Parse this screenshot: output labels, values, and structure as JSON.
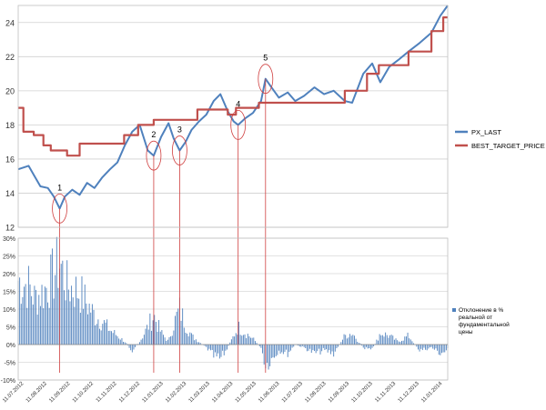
{
  "chart_data": [
    {
      "type": "line",
      "title": "",
      "xlabel": "",
      "ylabel": "",
      "ylim": [
        12,
        25
      ],
      "y_ticks": [
        "12",
        "14",
        "16",
        "18",
        "20",
        "22",
        "24"
      ],
      "grid": true,
      "legend_position": "right",
      "x_range": [
        "2012-07-11",
        "2014-02-11"
      ],
      "series": [
        {
          "name": "PX_LAST",
          "color": "#4F81BD",
          "points": [
            [
              "2012-07-11",
              15.4
            ],
            [
              "2012-07-25",
              15.6
            ],
            [
              "2012-08-02",
              15.0
            ],
            [
              "2012-08-10",
              14.4
            ],
            [
              "2012-08-20",
              14.3
            ],
            [
              "2012-08-28",
              13.8
            ],
            [
              "2012-09-05",
              13.1
            ],
            [
              "2012-09-12",
              13.8
            ],
            [
              "2012-09-22",
              14.2
            ],
            [
              "2012-10-02",
              13.9
            ],
            [
              "2012-10-12",
              14.6
            ],
            [
              "2012-10-22",
              14.3
            ],
            [
              "2012-11-01",
              14.9
            ],
            [
              "2012-11-12",
              15.4
            ],
            [
              "2012-11-22",
              15.8
            ],
            [
              "2012-12-02",
              16.8
            ],
            [
              "2012-12-12",
              17.6
            ],
            [
              "2012-12-22",
              18.0
            ],
            [
              "2013-01-02",
              16.5
            ],
            [
              "2013-01-10",
              16.2
            ],
            [
              "2013-01-20",
              17.3
            ],
            [
              "2013-01-30",
              18.1
            ],
            [
              "2013-02-06",
              17.2
            ],
            [
              "2013-02-14",
              16.5
            ],
            [
              "2013-02-22",
              17.0
            ],
            [
              "2013-03-02",
              17.7
            ],
            [
              "2013-03-12",
              18.2
            ],
            [
              "2013-03-22",
              18.6
            ],
            [
              "2013-04-01",
              19.4
            ],
            [
              "2013-04-10",
              19.8
            ],
            [
              "2013-04-20",
              18.8
            ],
            [
              "2013-04-28",
              18.2
            ],
            [
              "2013-05-04",
              18.0
            ],
            [
              "2013-05-14",
              18.4
            ],
            [
              "2013-05-24",
              18.7
            ],
            [
              "2013-06-04",
              19.4
            ],
            [
              "2013-06-10",
              20.7
            ],
            [
              "2013-06-18",
              20.2
            ],
            [
              "2013-06-28",
              19.6
            ],
            [
              "2013-07-10",
              19.9
            ],
            [
              "2013-07-20",
              19.4
            ],
            [
              "2013-08-01",
              19.7
            ],
            [
              "2013-08-15",
              20.2
            ],
            [
              "2013-08-28",
              19.8
            ],
            [
              "2013-09-10",
              20.0
            ],
            [
              "2013-09-25",
              19.4
            ],
            [
              "2013-10-05",
              19.3
            ],
            [
              "2013-10-20",
              21.0
            ],
            [
              "2013-11-01",
              21.6
            ],
            [
              "2013-11-12",
              20.5
            ],
            [
              "2013-11-24",
              21.4
            ],
            [
              "2013-12-06",
              21.8
            ],
            [
              "2013-12-20",
              22.3
            ],
            [
              "2014-01-04",
              22.8
            ],
            [
              "2014-01-20",
              23.4
            ],
            [
              "2014-02-01",
              24.4
            ],
            [
              "2014-02-11",
              25.0
            ]
          ]
        },
        {
          "name": "BEST_TARGET_PRICE",
          "color": "#C0504D",
          "points": [
            [
              "2012-07-11",
              19.0
            ],
            [
              "2012-07-18",
              19.0
            ],
            [
              "2012-07-18",
              17.6
            ],
            [
              "2012-08-01",
              17.6
            ],
            [
              "2012-08-01",
              17.4
            ],
            [
              "2012-08-14",
              17.4
            ],
            [
              "2012-08-14",
              16.8
            ],
            [
              "2012-08-24",
              16.8
            ],
            [
              "2012-08-24",
              16.5
            ],
            [
              "2012-09-15",
              16.5
            ],
            [
              "2012-09-15",
              16.2
            ],
            [
              "2012-10-02",
              16.2
            ],
            [
              "2012-10-02",
              16.9
            ],
            [
              "2012-12-01",
              16.9
            ],
            [
              "2012-12-01",
              17.4
            ],
            [
              "2012-12-20",
              17.4
            ],
            [
              "2012-12-20",
              18.0
            ],
            [
              "2013-01-10",
              18.0
            ],
            [
              "2013-01-10",
              18.3
            ],
            [
              "2013-03-10",
              18.3
            ],
            [
              "2013-03-10",
              18.9
            ],
            [
              "2013-04-20",
              18.9
            ],
            [
              "2013-04-20",
              18.6
            ],
            [
              "2013-05-01",
              18.6
            ],
            [
              "2013-05-01",
              19.0
            ],
            [
              "2013-06-01",
              19.0
            ],
            [
              "2013-06-01",
              19.3
            ],
            [
              "2013-09-25",
              19.3
            ],
            [
              "2013-09-25",
              20.0
            ],
            [
              "2013-10-25",
              20.0
            ],
            [
              "2013-10-25",
              21.0
            ],
            [
              "2013-11-10",
              21.0
            ],
            [
              "2013-11-10",
              21.5
            ],
            [
              "2013-12-20",
              21.5
            ],
            [
              "2013-12-20",
              22.3
            ],
            [
              "2014-01-20",
              22.3
            ],
            [
              "2014-01-20",
              23.5
            ],
            [
              "2014-02-05",
              23.5
            ],
            [
              "2014-02-05",
              24.3
            ],
            [
              "2014-02-11",
              24.3
            ]
          ]
        }
      ],
      "annotations": [
        {
          "label": "1",
          "date": "2012-09-05",
          "y": 13.1
        },
        {
          "label": "2",
          "date": "2013-01-10",
          "y": 16.2
        },
        {
          "label": "3",
          "date": "2013-02-14",
          "y": 16.5
        },
        {
          "label": "4",
          "date": "2013-05-04",
          "y": 18.0
        },
        {
          "label": "5",
          "date": "2013-06-10",
          "y": 20.7
        }
      ]
    },
    {
      "type": "bar",
      "title": "",
      "ylim": [
        -10,
        30
      ],
      "y_ticks": [
        "-10%",
        "-5%",
        "0%",
        "5%",
        "10%",
        "15%",
        "20%",
        "25%",
        "30%"
      ],
      "grid": true,
      "legend_position": "right",
      "legend_label": "Отклонение в % реальной от фундаментальной цены",
      "x_ticks": [
        "11.07.2012",
        "11.08.2012",
        "11.09.2012",
        "11.10.2012",
        "11.11.2012",
        "11.12.2012",
        "11.01.2013",
        "11.02.2013",
        "11.03.2013",
        "11.04.2013",
        "11.05.2013",
        "11.06.2013",
        "11.07.2013",
        "11.08.2013",
        "11.09.2013",
        "11.10.2013",
        "11.11.2013",
        "11.12.2013",
        "11.01.2014"
      ],
      "series": [
        {
          "name": "Отклонение в % реальной от фундаментальной цены",
          "color": "#4F81BD",
          "points": [
            [
              "2012-07-11",
              22
            ],
            [
              "2012-07-25",
              20
            ],
            [
              "2012-08-02",
              16
            ],
            [
              "2012-08-14",
              18
            ],
            [
              "2012-08-24",
              22
            ],
            [
              "2012-09-05",
              28
            ],
            [
              "2012-09-15",
              20
            ],
            [
              "2012-10-02",
              18
            ],
            [
              "2012-10-12",
              14
            ],
            [
              "2012-10-22",
              10
            ],
            [
              "2012-11-01",
              8
            ],
            [
              "2012-11-12",
              5
            ],
            [
              "2012-11-22",
              3
            ],
            [
              "2012-12-02",
              1
            ],
            [
              "2012-12-12",
              -2
            ],
            [
              "2012-12-22",
              1
            ],
            [
              "2013-01-02",
              6
            ],
            [
              "2013-01-10",
              10
            ],
            [
              "2013-01-20",
              4
            ],
            [
              "2013-01-30",
              1
            ],
            [
              "2013-02-06",
              7
            ],
            [
              "2013-02-14",
              12
            ],
            [
              "2013-02-22",
              7
            ],
            [
              "2013-03-02",
              3
            ],
            [
              "2013-03-12",
              1
            ],
            [
              "2013-03-22",
              -1
            ],
            [
              "2013-04-01",
              -4
            ],
            [
              "2013-04-10",
              -5
            ],
            [
              "2013-04-20",
              -1
            ],
            [
              "2013-05-04",
              6
            ],
            [
              "2013-05-14",
              4
            ],
            [
              "2013-05-24",
              2
            ],
            [
              "2013-06-04",
              -1
            ],
            [
              "2013-06-10",
              -7
            ],
            [
              "2013-06-18",
              -5
            ],
            [
              "2013-06-28",
              -2
            ],
            [
              "2013-07-10",
              -3
            ],
            [
              "2013-07-20",
              0
            ],
            [
              "2013-08-01",
              -1
            ],
            [
              "2013-08-15",
              -3
            ],
            [
              "2013-08-28",
              -2
            ],
            [
              "2013-09-10",
              -3
            ],
            [
              "2013-09-25",
              3
            ],
            [
              "2013-10-05",
              4
            ],
            [
              "2013-10-20",
              -1
            ],
            [
              "2013-11-01",
              -2
            ],
            [
              "2013-11-12",
              4
            ],
            [
              "2013-11-24",
              3
            ],
            [
              "2013-12-06",
              1
            ],
            [
              "2013-12-20",
              3
            ],
            [
              "2014-01-04",
              -2
            ],
            [
              "2014-01-20",
              -1
            ],
            [
              "2014-02-01",
              -3
            ],
            [
              "2014-02-11",
              -2
            ]
          ]
        }
      ]
    }
  ]
}
